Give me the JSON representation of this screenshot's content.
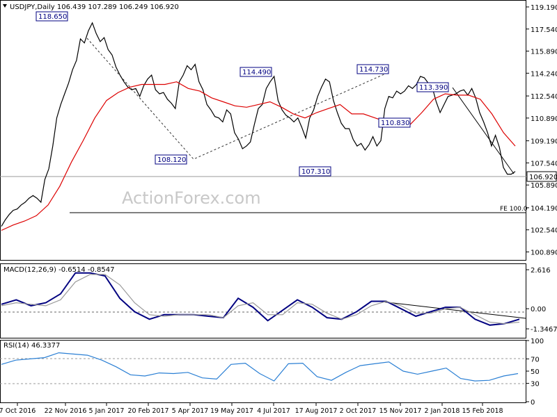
{
  "chart_data": {
    "type": "line",
    "symbol_line": "USDJPY,Daily  106.439 107.289 106.249 106.920",
    "watermark": "ActionForex.com",
    "x_tick_labels": [
      "7 Oct 2016",
      "22 Nov 2016",
      "5 Jan 2017",
      "20 Feb 2017",
      "5 Apr 2017",
      "19 May 2017",
      "4 Jul 2017",
      "17 Aug 2017",
      "2 Oct 2017",
      "15 Nov 2017",
      "2 Jan 2018",
      "15 Feb 2018"
    ],
    "price": {
      "y_tick_labels": [
        "119.190",
        "117.540",
        "115.890",
        "114.240",
        "112.540",
        "110.890",
        "109.190",
        "107.540",
        "105.890",
        "104.190",
        "102.540",
        "100.890"
      ],
      "ylim": [
        100.5,
        119.5
      ],
      "series": [
        {
          "name": "price",
          "color": "#000000",
          "values": [
            102.8,
            103.3,
            103.7,
            104.0,
            104.1,
            104.4,
            104.6,
            104.9,
            105.1,
            104.9,
            104.6,
            106.3,
            107.1,
            108.8,
            110.9,
            111.9,
            112.7,
            113.5,
            114.5,
            115.2,
            116.8,
            116.5,
            117.4,
            118.0,
            117.2,
            116.6,
            116.9,
            116.0,
            115.6,
            114.7,
            114.1,
            113.6,
            113.2,
            113.0,
            113.1,
            112.5,
            113.3,
            113.8,
            114.1,
            113.0,
            112.7,
            112.8,
            112.3,
            112.0,
            111.6,
            113.6,
            114.1,
            114.8,
            114.5,
            114.9,
            113.6,
            113.0,
            111.9,
            111.5,
            111.0,
            110.9,
            110.6,
            111.5,
            111.2,
            109.8,
            109.3,
            108.6,
            108.8,
            109.1,
            110.4,
            111.6,
            111.9,
            113.1,
            113.6,
            114.0,
            112.2,
            111.5,
            111.1,
            110.9,
            110.6,
            110.9,
            110.2,
            109.4,
            110.9,
            111.5,
            112.5,
            113.2,
            113.8,
            113.6,
            112.2,
            111.3,
            110.5,
            110.1,
            110.1,
            109.3,
            108.8,
            109.0,
            108.5,
            108.9,
            109.5,
            108.8,
            109.2,
            111.6,
            112.5,
            112.4,
            112.9,
            112.7,
            112.9,
            113.3,
            113.1,
            113.4,
            114.0,
            113.9,
            113.5,
            113.2,
            112.1,
            111.3,
            111.9,
            112.5,
            112.6,
            112.7,
            112.9,
            113.0,
            112.6,
            113.1,
            112.4,
            111.3,
            110.6,
            109.8,
            108.8,
            109.6,
            108.7,
            107.2,
            106.7,
            106.7,
            106.9
          ]
        },
        {
          "name": "ma",
          "color": "#dd0000",
          "values": [
            102.5,
            102.9,
            103.2,
            103.6,
            104.4,
            105.8,
            107.6,
            109.2,
            110.9,
            112.2,
            112.8,
            113.2,
            113.4,
            113.4,
            113.4,
            113.6,
            113.1,
            112.9,
            112.4,
            112.1,
            111.8,
            111.7,
            111.9,
            112.1,
            111.7,
            111.2,
            110.9,
            111.3,
            111.6,
            111.9,
            111.2,
            111.2,
            110.9,
            110.6,
            110.3,
            110.4,
            111.3,
            112.3,
            112.7,
            112.6,
            112.6,
            112.3,
            111.2,
            109.8,
            108.8
          ]
        }
      ],
      "hline": 104.3,
      "hline_label": "FE 100.0",
      "current_label": "106.920",
      "annotations": [
        "118.650",
        "108.120",
        "114.490",
        "107.310",
        "114.730",
        "110.830",
        "113.390"
      ]
    },
    "macd": {
      "label": "MACD(12,26,9) -0.6514 -0.8547",
      "y_tick_labels": [
        "2.616",
        "0.00",
        "-1.3467"
      ],
      "ylim": [
        -1.9,
        2.9
      ],
      "series": [
        {
          "name": "macd",
          "color": "#000080",
          "values": [
            0.3,
            0.6,
            0.2,
            0.4,
            1.0,
            2.4,
            2.4,
            2.2,
            0.7,
            -0.2,
            -0.7,
            -0.4,
            -0.4,
            -0.4,
            -0.5,
            -0.6,
            0.7,
            0.1,
            -0.8,
            -0.1,
            0.6,
            0.1,
            -0.6,
            -0.7,
            -0.2,
            0.5,
            0.5,
            0.0,
            -0.5,
            -0.2,
            0.1,
            0.1,
            -0.7,
            -1.1,
            -1.0,
            -0.7
          ]
        },
        {
          "name": "signal",
          "color": "#999999",
          "values": [
            0.2,
            0.4,
            0.3,
            0.2,
            0.6,
            1.8,
            2.3,
            2.3,
            1.6,
            0.4,
            -0.4,
            -0.5,
            -0.4,
            -0.4,
            -0.4,
            -0.6,
            0.2,
            0.4,
            -0.4,
            -0.4,
            0.4,
            0.3,
            -0.3,
            -0.7,
            -0.4,
            0.2,
            0.5,
            0.2,
            -0.3,
            -0.3,
            0.0,
            0.1,
            -0.4,
            -0.9,
            -1.0,
            -0.9
          ]
        }
      ]
    },
    "rsi": {
      "label": "RSI(14) 46.3377",
      "y_tick_labels": [
        "100",
        "70",
        "50",
        "30",
        "0"
      ],
      "ylim": [
        0,
        100
      ],
      "series": [
        {
          "name": "rsi",
          "color": "#2a7fd4",
          "values": [
            61,
            68,
            70,
            72,
            80,
            78,
            76,
            68,
            57,
            44,
            42,
            47,
            46,
            48,
            39,
            37,
            61,
            63,
            46,
            34,
            62,
            63,
            41,
            35,
            48,
            59,
            62,
            65,
            50,
            45,
            50,
            55,
            38,
            34,
            35,
            42,
            46
          ]
        }
      ],
      "levels": [
        70,
        30
      ]
    }
  }
}
